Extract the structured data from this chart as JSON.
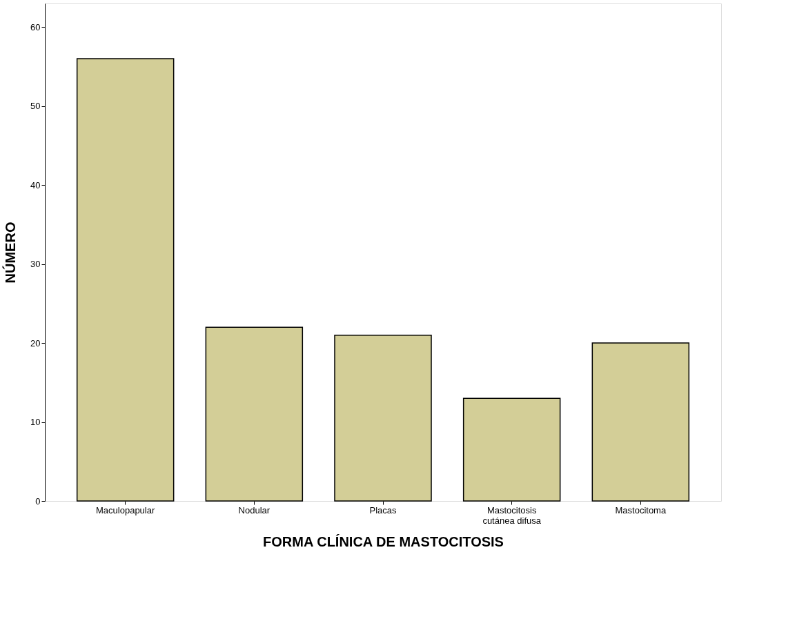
{
  "chart_data": {
    "type": "bar",
    "xlabel": "FORMA CLÍNICA DE MASTOCITOSIS",
    "ylabel": "NÚMERO",
    "categories": [
      "Maculopapular",
      "Nodular",
      "Placas",
      "Mastocitosis cutánea difusa",
      "Mastocitoma"
    ],
    "values": [
      56,
      22,
      21,
      13,
      20
    ],
    "color": "#d3ce97",
    "ylim": [
      0,
      63
    ],
    "yticks": [
      0,
      10,
      20,
      30,
      40,
      50,
      60
    ],
    "grid": false
  }
}
